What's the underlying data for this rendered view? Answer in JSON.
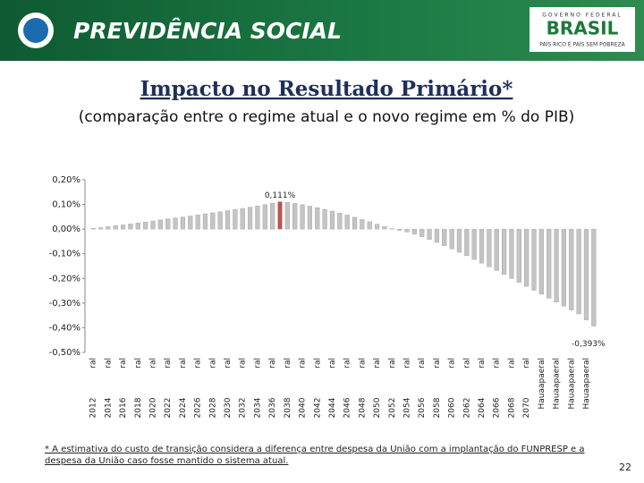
{
  "header": {
    "brand": "PREVIDÊNCIA SOCIAL",
    "gov_top": "GOVERNO FEDERAL",
    "gov_name": "BRASIL",
    "gov_slogan": "PAÍS RICO É PAÍS SEM POBREZA"
  },
  "chart_data": {
    "type": "bar",
    "title": "Impacto no Resultado Primário*",
    "subtitle": "(comparação entre o regime atual e o novo regime em % do PIB)",
    "categories": [
      "2012 ral",
      null,
      "2014 ral",
      null,
      "2016 ral",
      null,
      "2018 ral",
      null,
      "2020 ral",
      null,
      "2022 ral",
      null,
      "2024 ral",
      null,
      "2026 ral",
      null,
      "2028 ral",
      null,
      "2030 ral",
      null,
      "2032 ral",
      null,
      "2034 ral",
      null,
      "2036 ral",
      null,
      "2038 ral",
      null,
      "2040 ral",
      null,
      "2042 ral",
      null,
      "2044 ral",
      null,
      "2046 ral",
      null,
      "2048 ral",
      null,
      "2050 ral",
      null,
      "2052 ral",
      null,
      "2054 ral",
      null,
      "2056 ral",
      null,
      "2058 ral",
      null,
      "2060 ral",
      null,
      "2062 ral",
      null,
      "2064 ral",
      null,
      "2066 ral",
      null,
      "2068 ral",
      null,
      "2070 ral",
      null,
      "Hauaapaeral",
      null,
      "Hauaapaeral",
      null,
      "Hauaapaeral",
      null,
      "Hauaapaeral",
      null
    ],
    "values": [
      0.003,
      0.006,
      0.01,
      0.014,
      0.017,
      0.021,
      0.025,
      0.029,
      0.033,
      0.037,
      0.041,
      0.045,
      0.049,
      0.053,
      0.057,
      0.062,
      0.066,
      0.07,
      0.075,
      0.079,
      0.084,
      0.089,
      0.094,
      0.099,
      0.105,
      0.111,
      0.108,
      0.104,
      0.099,
      0.093,
      0.087,
      0.08,
      0.073,
      0.065,
      0.057,
      0.048,
      0.039,
      0.03,
      0.02,
      0.011,
      0.002,
      -0.005,
      -0.012,
      -0.021,
      -0.031,
      -0.042,
      -0.054,
      -0.067,
      -0.08,
      -0.094,
      -0.108,
      -0.123,
      -0.138,
      -0.153,
      -0.168,
      -0.184,
      -0.2,
      -0.216,
      -0.232,
      -0.248,
      -0.264,
      -0.28,
      -0.296,
      -0.312,
      -0.328,
      -0.344,
      -0.368,
      -0.393
    ],
    "value_labels": [
      null,
      null,
      null,
      null,
      null,
      null,
      null,
      null,
      null,
      null,
      null,
      null,
      null,
      null,
      null,
      null,
      null,
      null,
      null,
      null,
      null,
      null,
      null,
      null,
      null,
      "0,111%",
      null,
      null,
      null,
      null,
      null,
      null,
      null,
      null,
      null,
      null,
      null,
      null,
      null,
      null,
      null,
      null,
      null,
      null,
      null,
      null,
      null,
      null,
      null,
      null,
      null,
      null,
      null,
      null,
      null,
      null,
      null,
      null,
      null,
      null,
      null,
      null,
      null,
      null,
      null,
      null,
      null,
      "-0,393%"
    ],
    "colors": [
      "#c4c4c4",
      "#c4c4c4",
      "#c4c4c4",
      "#c4c4c4",
      "#c4c4c4",
      "#c4c4c4",
      "#c4c4c4",
      "#c4c4c4",
      "#c4c4c4",
      "#c4c4c4",
      "#c4c4c4",
      "#c4c4c4",
      "#c4c4c4",
      "#c4c4c4",
      "#c4c4c4",
      "#c4c4c4",
      "#c4c4c4",
      "#c4c4c4",
      "#c4c4c4",
      "#c4c4c4",
      "#c4c4c4",
      "#c4c4c4",
      "#c4c4c4",
      "#c4c4c4",
      "#c4c4c4",
      "#c0504d",
      "#c4c4c4",
      "#c4c4c4",
      "#c4c4c4",
      "#c4c4c4",
      "#c4c4c4",
      "#c4c4c4",
      "#c4c4c4",
      "#c4c4c4",
      "#c4c4c4",
      "#c4c4c4",
      "#c4c4c4",
      "#c4c4c4",
      "#c4c4c4",
      "#c4c4c4",
      "#c4c4c4",
      "#c4c4c4",
      "#c4c4c4",
      "#c4c4c4",
      "#c4c4c4",
      "#c4c4c4",
      "#c4c4c4",
      "#c4c4c4",
      "#c4c4c4",
      "#c4c4c4",
      "#c4c4c4",
      "#c4c4c4",
      "#c4c4c4",
      "#c4c4c4",
      "#c4c4c4",
      "#c4c4c4",
      "#c4c4c4",
      "#c4c4c4",
      "#c4c4c4",
      "#c4c4c4",
      "#c4c4c4",
      "#c4c4c4",
      "#c4c4c4",
      "#c4c4c4",
      "#c4c4c4",
      "#c4c4c4",
      "#c4c4c4",
      "#c4c4c4"
    ],
    "ylim": [
      -0.5,
      0.2
    ],
    "yticks": [
      {
        "value": 0.2,
        "label": "0,20%"
      },
      {
        "value": 0.1,
        "label": "0,10%"
      },
      {
        "value": 0,
        "label": "0,00%"
      },
      {
        "value": -0.1,
        "label": "-0,10%"
      },
      {
        "value": -0.2,
        "label": "-0,20%"
      },
      {
        "value": -0.3,
        "label": "-0,30%"
      },
      {
        "value": -0.4,
        "label": "-0,40%"
      },
      {
        "value": -0.5,
        "label": "-0,50%"
      }
    ],
    "grid": false,
    "footnote": "* A estimativa do custo de transição considera a diferença entre despesa da União com a implantação do FUNPRESP e a despesa da União caso fosse mantido o sistema atual.",
    "page_number": "22"
  }
}
